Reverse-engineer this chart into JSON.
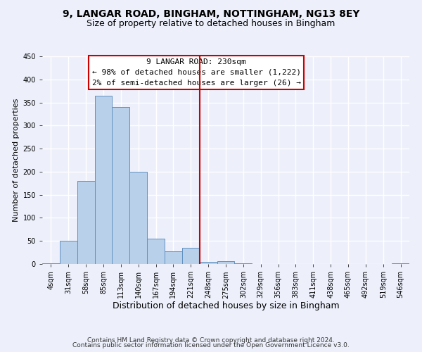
{
  "title": "9, LANGAR ROAD, BINGHAM, NOTTINGHAM, NG13 8EY",
  "subtitle": "Size of property relative to detached houses in Bingham",
  "xlabel": "Distribution of detached houses by size in Bingham",
  "ylabel": "Number of detached properties",
  "bin_labels": [
    "4sqm",
    "31sqm",
    "58sqm",
    "85sqm",
    "113sqm",
    "140sqm",
    "167sqm",
    "194sqm",
    "221sqm",
    "248sqm",
    "275sqm",
    "302sqm",
    "329sqm",
    "356sqm",
    "383sqm",
    "411sqm",
    "438sqm",
    "465sqm",
    "492sqm",
    "519sqm",
    "546sqm"
  ],
  "bar_heights": [
    2,
    50,
    180,
    365,
    340,
    200,
    55,
    27,
    35,
    5,
    6,
    2,
    0,
    0,
    0,
    0,
    0,
    0,
    0,
    0,
    2
  ],
  "bar_color": "#b8d0ea",
  "bar_edge_color": "#6090c0",
  "vline_x": 8.5,
  "vline_color": "#cc0000",
  "annotation_box_text": "9 LANGAR ROAD: 230sqm\n← 98% of detached houses are smaller (1,222)\n2% of semi-detached houses are larger (26) →",
  "box_edge_color": "#cc0000",
  "ylim": [
    0,
    450
  ],
  "yticks": [
    0,
    50,
    100,
    150,
    200,
    250,
    300,
    350,
    400,
    450
  ],
  "footer_line1": "Contains HM Land Registry data © Crown copyright and database right 2024.",
  "footer_line2": "Contains public sector information licensed under the Open Government Licence v3.0.",
  "background_color": "#edf0fb",
  "grid_color": "#ffffff",
  "title_fontsize": 10,
  "subtitle_fontsize": 9,
  "xlabel_fontsize": 9,
  "ylabel_fontsize": 8,
  "tick_fontsize": 7,
  "annotation_fontsize": 8,
  "footer_fontsize": 6.5
}
